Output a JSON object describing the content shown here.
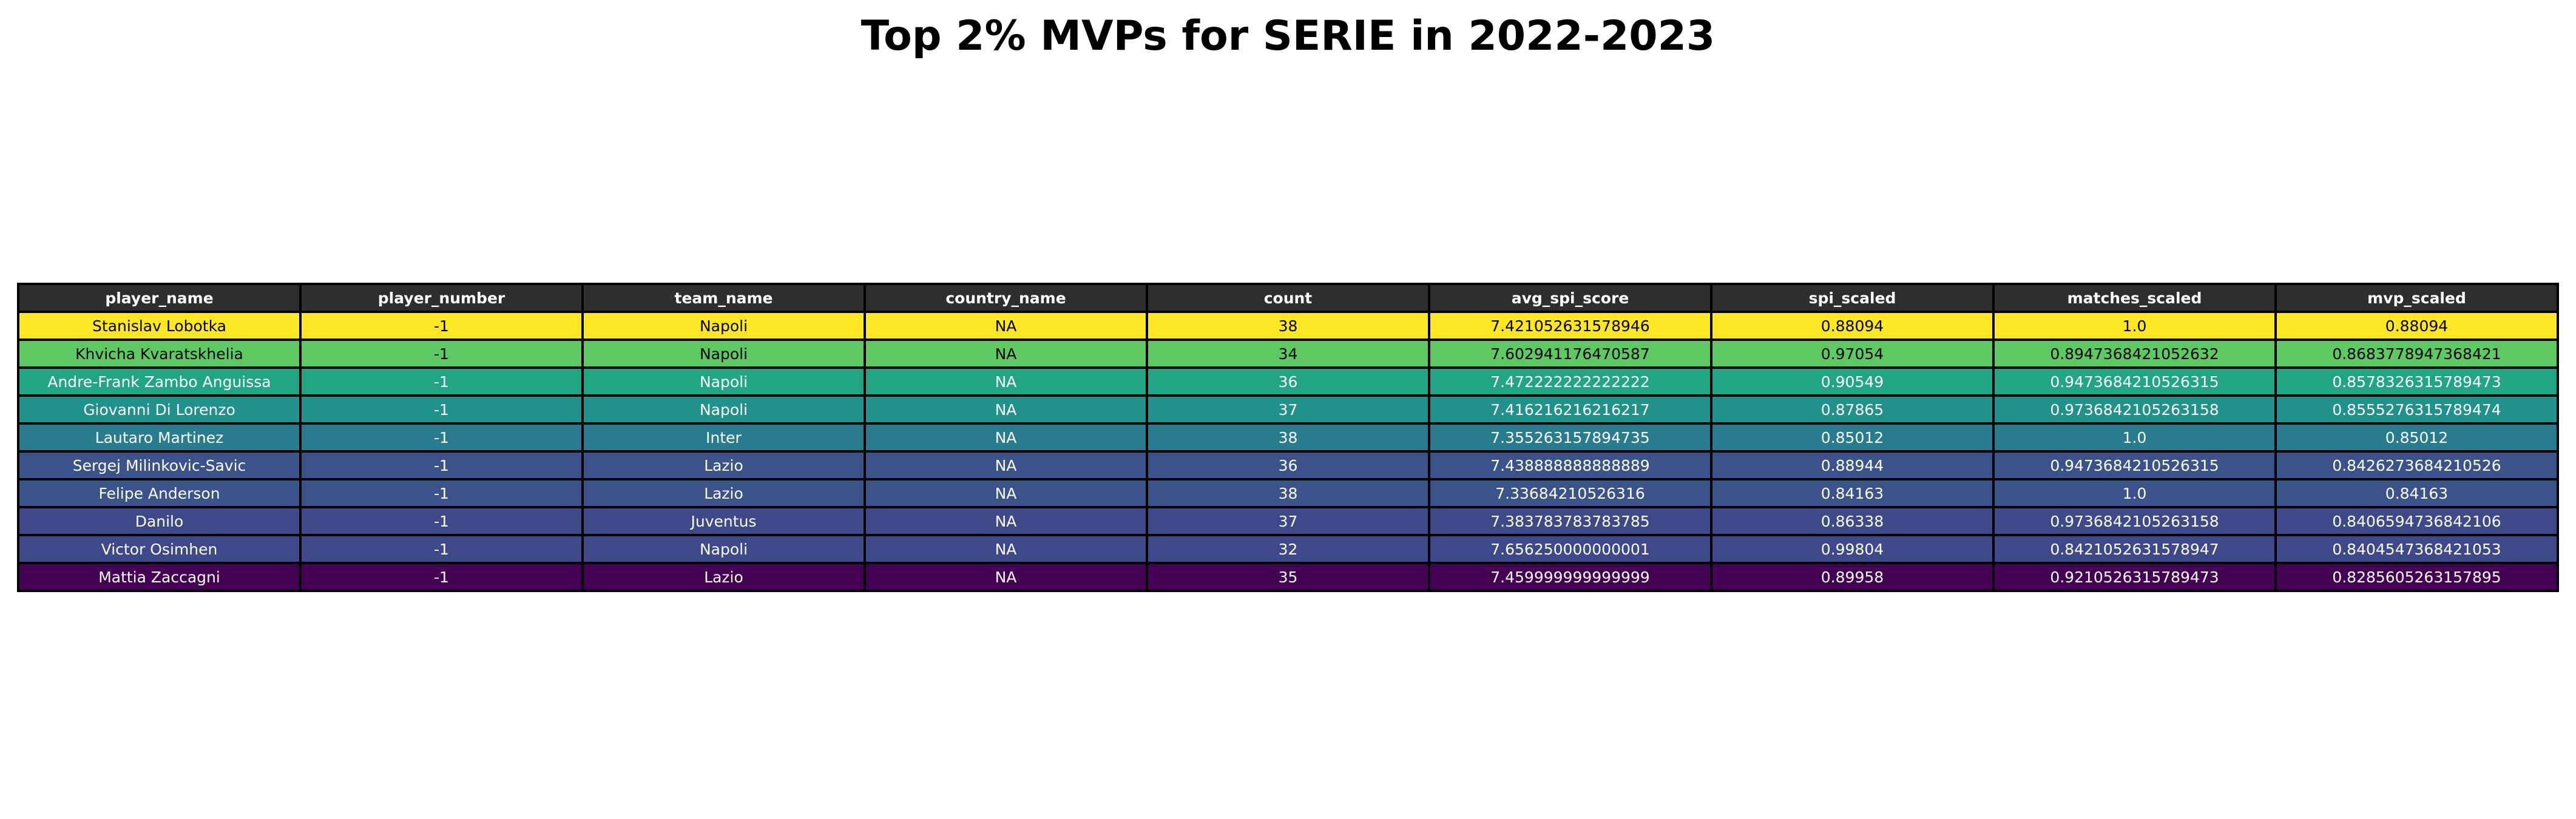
{
  "chart_data": {
    "type": "table",
    "title": "Top 2% MVPs for SERIE in 2022-2023",
    "columns": [
      "player_name",
      "player_number",
      "team_name",
      "country_name",
      "count",
      "avg_spi_score",
      "spi_scaled",
      "matches_scaled",
      "mvp_scaled"
    ],
    "header_color": "#2e2e2e",
    "rows": [
      {
        "cells": [
          "Stanislav Lobotka",
          "-1",
          "Napoli",
          "NA",
          "38",
          "7.421052631578946",
          "0.88094",
          "1.0",
          "0.88094"
        ],
        "color": "#fde725",
        "text_color": "#000000"
      },
      {
        "cells": [
          "Khvicha Kvaratskhelia",
          "-1",
          "Napoli",
          "NA",
          "34",
          "7.602941176470587",
          "0.97054",
          "0.8947368421052632",
          "0.8683778947368421"
        ],
        "color": "#5ec962",
        "text_color": "#000000"
      },
      {
        "cells": [
          "Andre-Frank Zambo Anguissa",
          "-1",
          "Napoli",
          "NA",
          "36",
          "7.472222222222222",
          "0.90549",
          "0.9473684210526315",
          "0.8578326315789473"
        ],
        "color": "#21a585",
        "text_color": "#ffffff"
      },
      {
        "cells": [
          "Giovanni Di Lorenzo",
          "-1",
          "Napoli",
          "NA",
          "37",
          "7.416216216216217",
          "0.87865",
          "0.9736842105263158",
          "0.8555276315789474"
        ],
        "color": "#21918c",
        "text_color": "#ffffff"
      },
      {
        "cells": [
          "Lautaro Martinez",
          "-1",
          "Inter",
          "NA",
          "38",
          "7.355263157894735",
          "0.85012",
          "1.0",
          "0.85012"
        ],
        "color": "#287c8e",
        "text_color": "#ffffff"
      },
      {
        "cells": [
          "Sergej Milinkovic-Savic",
          "-1",
          "Lazio",
          "NA",
          "36",
          "7.438888888888889",
          "0.88944",
          "0.9473684210526315",
          "0.8426273684210526"
        ],
        "color": "#3b528b",
        "text_color": "#ffffff"
      },
      {
        "cells": [
          "Felipe Anderson",
          "-1",
          "Lazio",
          "NA",
          "38",
          "7.33684210526316",
          "0.84163",
          "1.0",
          "0.84163"
        ],
        "color": "#3b528b",
        "text_color": "#ffffff"
      },
      {
        "cells": [
          "Danilo",
          "-1",
          "Juventus",
          "NA",
          "37",
          "7.383783783783785",
          "0.86338",
          "0.9736842105263158",
          "0.8406594736842106"
        ],
        "color": "#3e4989",
        "text_color": "#ffffff"
      },
      {
        "cells": [
          "Victor Osimhen",
          "-1",
          "Napoli",
          "NA",
          "32",
          "7.656250000000001",
          "0.99804",
          "0.8421052631578947",
          "0.8404547368421053"
        ],
        "color": "#3e4989",
        "text_color": "#ffffff"
      },
      {
        "cells": [
          "Mattia Zaccagni",
          "-1",
          "Lazio",
          "NA",
          "35",
          "7.459999999999999",
          "0.89958",
          "0.9210526315789473",
          "0.8285605263157895"
        ],
        "color": "#440154",
        "text_color": "#ffffff"
      }
    ]
  }
}
